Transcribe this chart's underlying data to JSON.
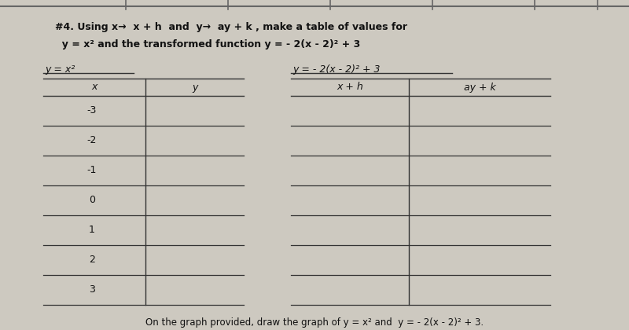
{
  "title_line1": "#4. Using x→  x + h  and  y→  ay + k , make a table of values for",
  "title_line2": "  y = x² and the transformed function y = - 2(x - 2)² + 3",
  "table1_title": "y = x²",
  "table2_title": "y = - 2(x - 2)² + 3",
  "table1_col1": "x",
  "table1_col2": "y",
  "table2_col1": "x + h",
  "table2_col2": "ay + k",
  "x_values": [
    "-3",
    "-2",
    "-1",
    "0",
    "1",
    "2",
    "3"
  ],
  "footer": "On the graph provided, draw the graph of y = x² and  y = - 2(x - 2)² + 3.",
  "bg_color": "#cdc9c0",
  "line_color": "#333333",
  "text_color": "#111111",
  "top_border_color": "#888888"
}
